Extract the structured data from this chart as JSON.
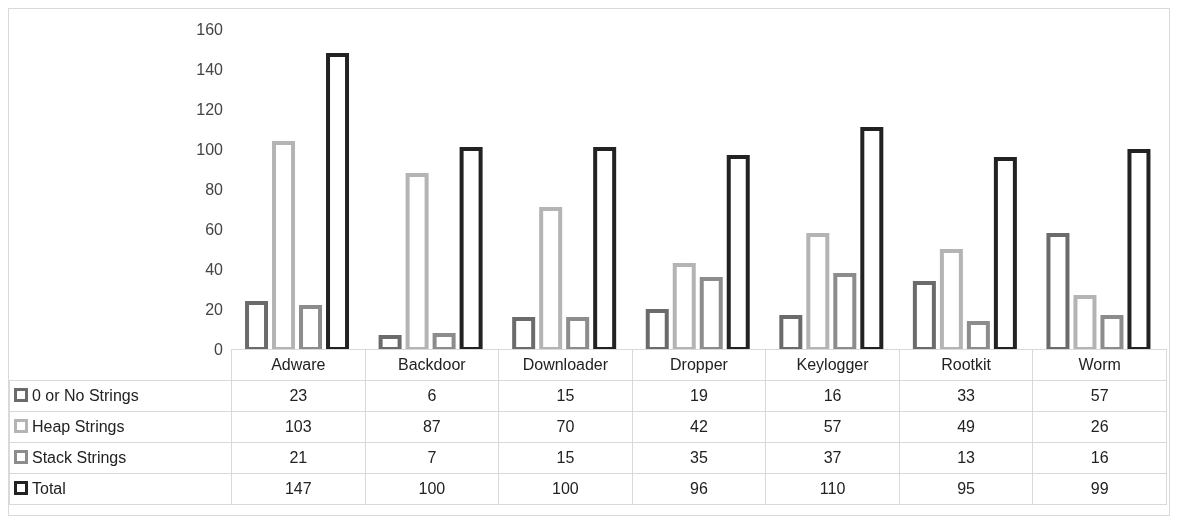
{
  "chart_data": {
    "type": "bar",
    "categories": [
      "Adware",
      "Backdoor",
      "Downloader",
      "Dropper",
      "Keylogger",
      "Rootkit",
      "Worm"
    ],
    "series": [
      {
        "name": "0 or No Strings",
        "color": "#6b6b6b",
        "values": [
          23,
          6,
          15,
          19,
          16,
          33,
          57
        ]
      },
      {
        "name": "Heap Strings",
        "color": "#b4b4b4",
        "values": [
          103,
          87,
          70,
          42,
          57,
          49,
          26
        ]
      },
      {
        "name": "Stack Strings",
        "color": "#8c8c8c",
        "values": [
          21,
          7,
          15,
          35,
          37,
          13,
          16
        ]
      },
      {
        "name": "Total",
        "color": "#222222",
        "values": [
          147,
          100,
          100,
          96,
          110,
          95,
          99
        ]
      }
    ],
    "ylim": [
      0,
      160
    ],
    "yticks": [
      0,
      20,
      40,
      60,
      80,
      100,
      120,
      140,
      160
    ],
    "grid": false,
    "legend": "bottom",
    "data_labels": true
  }
}
